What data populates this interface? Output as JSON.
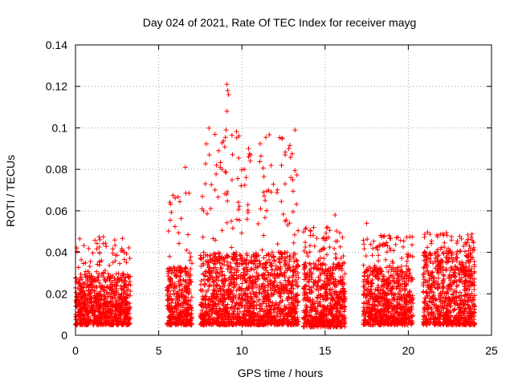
{
  "chart_data": {
    "type": "scatter",
    "title": "Day 024 of 2021, Rate Of TEC Index for receiver mayg",
    "xlabel": "GPS time / hours",
    "ylabel": "ROTI / TECUs",
    "xlim": [
      0,
      25
    ],
    "ylim": [
      0,
      0.14
    ],
    "xticks": [
      "0",
      "5",
      "10",
      "15",
      "20",
      "25"
    ],
    "yticks": [
      "0",
      "0.02",
      "0.04",
      "0.06",
      "0.08",
      "0.1",
      "0.12",
      "0.14"
    ],
    "grid": true,
    "marker": "+",
    "color": "#ff0000",
    "clusters": [
      {
        "x": [
          0.0,
          3.3
        ],
        "base": [
          0.005,
          0.03
        ],
        "peak": 0.055
      },
      {
        "x": [
          5.5,
          7.0
        ],
        "base": [
          0.005,
          0.033
        ],
        "peak": 0.081
      },
      {
        "x": [
          7.5,
          13.4
        ],
        "base": [
          0.005,
          0.04
        ],
        "peak": 0.121
      },
      {
        "x": [
          13.7,
          16.2
        ],
        "base": [
          0.004,
          0.035
        ],
        "peak": 0.058
      },
      {
        "x": [
          17.3,
          20.3
        ],
        "base": [
          0.005,
          0.033
        ],
        "peak": 0.054
      },
      {
        "x": [
          20.9,
          24.0
        ],
        "base": [
          0.005,
          0.04
        ],
        "peak": 0.053
      }
    ],
    "outliers": [
      {
        "x": 6.6,
        "y": 0.081
      },
      {
        "x": 8.6,
        "y": 0.089
      },
      {
        "x": 8.7,
        "y": 0.081
      },
      {
        "x": 8.8,
        "y": 0.08
      },
      {
        "x": 9.1,
        "y": 0.121
      },
      {
        "x": 9.15,
        "y": 0.118
      },
      {
        "x": 9.2,
        "y": 0.116
      },
      {
        "x": 9.1,
        "y": 0.108
      },
      {
        "x": 9.05,
        "y": 0.099
      },
      {
        "x": 9.0,
        "y": 0.079
      },
      {
        "x": 9.1,
        "y": 0.068
      },
      {
        "x": 10.4,
        "y": 0.09
      },
      {
        "x": 10.4,
        "y": 0.086
      },
      {
        "x": 10.5,
        "y": 0.084
      },
      {
        "x": 11.3,
        "y": 0.069
      },
      {
        "x": 11.4,
        "y": 0.065
      },
      {
        "x": 12.6,
        "y": 0.087
      },
      {
        "x": 12.6,
        "y": 0.073
      },
      {
        "x": 12.6,
        "y": 0.055
      },
      {
        "x": 15.6,
        "y": 0.058
      },
      {
        "x": 17.5,
        "y": 0.054
      },
      {
        "x": 7.6,
        "y": 0.061
      },
      {
        "x": 7.7,
        "y": 0.06
      }
    ]
  }
}
